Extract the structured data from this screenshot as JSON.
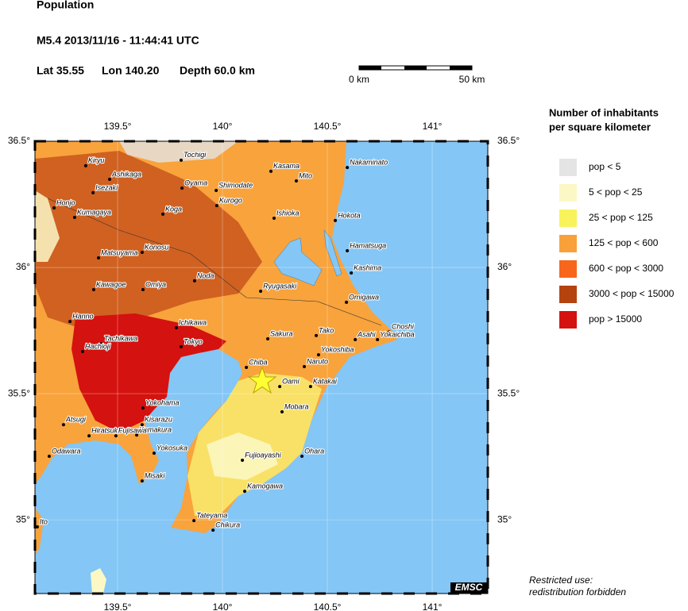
{
  "header": {
    "title": "Population",
    "event": "M5.4  2013/11/16 - 11:44:41 UTC",
    "lat": "Lat 35.55",
    "lon": "Lon 140.20",
    "depth": "Depth  60.0 km"
  },
  "scale": {
    "start": "0 km",
    "end": "50 km"
  },
  "legend": {
    "title_line1": "Number of inhabitants",
    "title_line2": "per square kilometer",
    "items": [
      {
        "label": "pop < 5",
        "color": "#e4e4e4"
      },
      {
        "label": "5 < pop < 25",
        "color": "#fbf8c6"
      },
      {
        "label": "25 < pop < 125",
        "color": "#f8f35a"
      },
      {
        "label": "125 < pop < 600",
        "color": "#f9a03a"
      },
      {
        "label": "600 < pop < 3000",
        "color": "#f7661b"
      },
      {
        "label": "3000 < pop < 15000",
        "color": "#b4430f"
      },
      {
        "label": "pop > 15000",
        "color": "#d4120f"
      }
    ]
  },
  "map": {
    "xlim": [
      139.106,
      141.265
    ],
    "ylim": [
      34.708,
      36.5
    ],
    "xticks": [
      {
        "value": 139.5,
        "label": "139.5°"
      },
      {
        "value": 140,
        "label": "140°"
      },
      {
        "value": 140.5,
        "label": "140.5°"
      },
      {
        "value": 141,
        "label": "141°"
      }
    ],
    "yticks": [
      {
        "value": 36.5,
        "label": "36.5°"
      },
      {
        "value": 36,
        "label": "36°"
      },
      {
        "value": 35.5,
        "label": "35.5°"
      },
      {
        "value": 35,
        "label": "35°"
      }
    ]
  },
  "cities": [
    {
      "name": "Kiryu",
      "lon": 139.348,
      "lat": 36.403
    },
    {
      "name": "Ashikaga",
      "lon": 139.462,
      "lat": 36.349
    },
    {
      "name": "Isezaki",
      "lon": 139.383,
      "lat": 36.296
    },
    {
      "name": "Honjo",
      "lon": 139.197,
      "lat": 36.236
    },
    {
      "name": "Kumagaya",
      "lon": 139.295,
      "lat": 36.198
    },
    {
      "name": "Tochigi",
      "lon": 139.803,
      "lat": 36.425
    },
    {
      "name": "Oyama",
      "lon": 139.807,
      "lat": 36.314
    },
    {
      "name": "Shimodate",
      "lon": 139.97,
      "lat": 36.305
    },
    {
      "name": "Kurogo",
      "lon": 139.973,
      "lat": 36.245
    },
    {
      "name": "Koga",
      "lon": 139.716,
      "lat": 36.211
    },
    {
      "name": "Kasama",
      "lon": 140.231,
      "lat": 36.381
    },
    {
      "name": "Mito",
      "lon": 140.352,
      "lat": 36.343
    },
    {
      "name": "Nakaminato",
      "lon": 140.595,
      "lat": 36.396
    },
    {
      "name": "Ishioka",
      "lon": 140.246,
      "lat": 36.195
    },
    {
      "name": "Hokota",
      "lon": 140.538,
      "lat": 36.186
    },
    {
      "name": "Hamatsuga",
      "lon": 140.595,
      "lat": 36.066
    },
    {
      "name": "Kashima",
      "lon": 140.614,
      "lat": 35.978
    },
    {
      "name": "Konosu",
      "lon": 139.617,
      "lat": 36.06
    },
    {
      "name": "Matsuyama",
      "lon": 139.409,
      "lat": 36.038
    },
    {
      "name": "Kawagoe",
      "lon": 139.386,
      "lat": 35.912
    },
    {
      "name": "Omiya",
      "lon": 139.621,
      "lat": 35.912
    },
    {
      "name": "Noda",
      "lon": 139.867,
      "lat": 35.947
    },
    {
      "name": "Ryugasaki",
      "lon": 140.182,
      "lat": 35.906
    },
    {
      "name": "Omigawa",
      "lon": 140.591,
      "lat": 35.862
    },
    {
      "name": "Hanno",
      "lon": 139.273,
      "lat": 35.786
    },
    {
      "name": "Ichikawa",
      "lon": 139.78,
      "lat": 35.761
    },
    {
      "name": "Tachikawa",
      "lon": 139.424,
      "lat": 35.698
    },
    {
      "name": "Hachioji",
      "lon": 139.333,
      "lat": 35.667
    },
    {
      "name": "Tokyo",
      "lon": 139.803,
      "lat": 35.686
    },
    {
      "name": "Sakura",
      "lon": 140.216,
      "lat": 35.717
    },
    {
      "name": "Tako",
      "lon": 140.447,
      "lat": 35.73
    },
    {
      "name": "Asahi",
      "lon": 140.633,
      "lat": 35.714
    },
    {
      "name": "Choshi",
      "lon": 140.795,
      "lat": 35.745
    },
    {
      "name": "Yokaichiba",
      "lon": 140.739,
      "lat": 35.714
    },
    {
      "name": "Yokoshiba",
      "lon": 140.458,
      "lat": 35.654
    },
    {
      "name": "Naruto",
      "lon": 140.39,
      "lat": 35.607
    },
    {
      "name": "Chiba",
      "lon": 140.114,
      "lat": 35.604
    },
    {
      "name": "Oami",
      "lon": 140.273,
      "lat": 35.528
    },
    {
      "name": "Katakai",
      "lon": 140.42,
      "lat": 35.528
    },
    {
      "name": "Mobara",
      "lon": 140.284,
      "lat": 35.428
    },
    {
      "name": "Yokohama",
      "lon": 139.621,
      "lat": 35.443
    },
    {
      "name": "Kisarazu",
      "lon": 139.617,
      "lat": 35.377
    },
    {
      "name": "Kamakura",
      "lon": 139.591,
      "lat": 35.336
    },
    {
      "name": "Atsugi",
      "lon": 139.242,
      "lat": 35.377
    },
    {
      "name": "Hiratsuka",
      "lon": 139.364,
      "lat": 35.333
    },
    {
      "name": "Fujisawa",
      "lon": 139.492,
      "lat": 35.333
    },
    {
      "name": "Yokosuka",
      "lon": 139.674,
      "lat": 35.264
    },
    {
      "name": "Odawara",
      "lon": 139.174,
      "lat": 35.252
    },
    {
      "name": "Misaki",
      "lon": 139.617,
      "lat": 35.154
    },
    {
      "name": "Fujioayashi",
      "lon": 140.095,
      "lat": 35.236
    },
    {
      "name": "Ohara",
      "lon": 140.379,
      "lat": 35.252
    },
    {
      "name": "Kamogawa",
      "lon": 140.106,
      "lat": 35.113
    },
    {
      "name": "Tateyama",
      "lon": 139.864,
      "lat": 34.997
    },
    {
      "name": "Chikura",
      "lon": 139.955,
      "lat": 34.959
    },
    {
      "name": "Ito",
      "lon": 139.117,
      "lat": 34.972
    }
  ],
  "footer": {
    "notice_line1": "Restricted use:",
    "notice_line2": "redistribution forbidden",
    "brand": "EMSC"
  }
}
